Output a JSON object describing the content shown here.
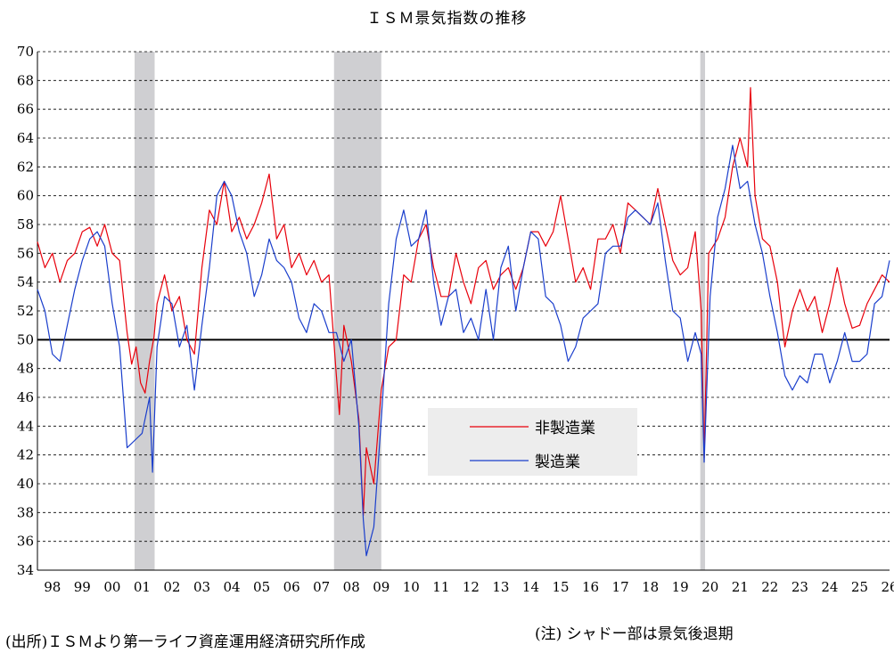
{
  "title": "ＩＳＭ景気指数の推移",
  "source_note": "(出所)ＩＳＭより第一ライフ資産運用経済研究所作成",
  "shadow_note": "(注) シャドー部は景気後退期",
  "chart_data": {
    "type": "line",
    "title": "ＩＳＭ景気指数の推移",
    "xlabel": "",
    "ylabel": "",
    "ylim": [
      34,
      70
    ],
    "yticks": [
      34,
      36,
      38,
      40,
      42,
      44,
      46,
      48,
      50,
      52,
      54,
      56,
      58,
      60,
      62,
      64,
      66,
      68,
      70
    ],
    "xlim": [
      1998.0,
      2026.5
    ],
    "xtick_labels": [
      "98",
      "99",
      "00",
      "01",
      "02",
      "03",
      "04",
      "05",
      "06",
      "07",
      "08",
      "09",
      "10",
      "11",
      "12",
      "13",
      "14",
      "15",
      "16",
      "17",
      "18",
      "19",
      "20",
      "21",
      "22",
      "23",
      "24",
      "25",
      "26"
    ],
    "reference_line": 50,
    "grid": "horizontal dashed",
    "legend_position": "center-right",
    "recessions": [
      [
        2001.25,
        2001.92
      ],
      [
        2007.92,
        2009.5
      ],
      [
        2020.17,
        2020.33
      ]
    ],
    "series": [
      {
        "name": "非製造業",
        "color": "#e8000b",
        "points": [
          [
            1998.0,
            56.8
          ],
          [
            1998.25,
            55.0
          ],
          [
            1998.5,
            56.0
          ],
          [
            1998.75,
            54.0
          ],
          [
            1999.0,
            55.5
          ],
          [
            1999.25,
            56.0
          ],
          [
            1999.5,
            57.5
          ],
          [
            1999.75,
            57.8
          ],
          [
            2000.0,
            56.5
          ],
          [
            2000.25,
            58.0
          ],
          [
            2000.5,
            56.0
          ],
          [
            2000.75,
            55.5
          ],
          [
            2001.0,
            50.5
          ],
          [
            2001.15,
            48.3
          ],
          [
            2001.3,
            49.5
          ],
          [
            2001.45,
            47.0
          ],
          [
            2001.6,
            46.3
          ],
          [
            2001.75,
            48.5
          ],
          [
            2001.9,
            50.2
          ],
          [
            2002.0,
            52.5
          ],
          [
            2002.25,
            54.5
          ],
          [
            2002.5,
            52.0
          ],
          [
            2002.75,
            53.0
          ],
          [
            2003.0,
            50.0
          ],
          [
            2003.25,
            49.0
          ],
          [
            2003.5,
            55.0
          ],
          [
            2003.75,
            59.0
          ],
          [
            2004.0,
            58.0
          ],
          [
            2004.25,
            61.0
          ],
          [
            2004.5,
            57.5
          ],
          [
            2004.75,
            58.5
          ],
          [
            2005.0,
            57.0
          ],
          [
            2005.25,
            58.0
          ],
          [
            2005.5,
            59.5
          ],
          [
            2005.75,
            61.5
          ],
          [
            2006.0,
            57.0
          ],
          [
            2006.25,
            58.0
          ],
          [
            2006.5,
            55.0
          ],
          [
            2006.75,
            56.0
          ],
          [
            2007.0,
            54.5
          ],
          [
            2007.25,
            55.5
          ],
          [
            2007.5,
            54.0
          ],
          [
            2007.75,
            54.5
          ],
          [
            2008.0,
            47.5
          ],
          [
            2008.1,
            44.8
          ],
          [
            2008.25,
            51.0
          ],
          [
            2008.5,
            48.5
          ],
          [
            2008.75,
            44.5
          ],
          [
            2008.9,
            37.8
          ],
          [
            2009.0,
            42.5
          ],
          [
            2009.25,
            40.0
          ],
          [
            2009.5,
            46.5
          ],
          [
            2009.75,
            49.5
          ],
          [
            2010.0,
            50.0
          ],
          [
            2010.25,
            54.5
          ],
          [
            2010.5,
            54.0
          ],
          [
            2010.75,
            57.0
          ],
          [
            2011.0,
            58.0
          ],
          [
            2011.25,
            55.0
          ],
          [
            2011.5,
            53.0
          ],
          [
            2011.75,
            53.0
          ],
          [
            2012.0,
            56.0
          ],
          [
            2012.25,
            54.0
          ],
          [
            2012.5,
            52.5
          ],
          [
            2012.75,
            55.0
          ],
          [
            2013.0,
            55.5
          ],
          [
            2013.25,
            53.5
          ],
          [
            2013.5,
            54.5
          ],
          [
            2013.75,
            55.0
          ],
          [
            2014.0,
            53.5
          ],
          [
            2014.25,
            55.0
          ],
          [
            2014.5,
            57.5
          ],
          [
            2014.75,
            57.5
          ],
          [
            2015.0,
            56.5
          ],
          [
            2015.25,
            57.5
          ],
          [
            2015.5,
            60.0
          ],
          [
            2015.75,
            57.0
          ],
          [
            2016.0,
            54.0
          ],
          [
            2016.25,
            55.0
          ],
          [
            2016.5,
            53.5
          ],
          [
            2016.75,
            57.0
          ],
          [
            2017.0,
            57.0
          ],
          [
            2017.25,
            58.0
          ],
          [
            2017.5,
            56.0
          ],
          [
            2017.75,
            59.5
          ],
          [
            2018.0,
            59.0
          ],
          [
            2018.25,
            58.5
          ],
          [
            2018.5,
            58.0
          ],
          [
            2018.75,
            60.5
          ],
          [
            2019.0,
            58.0
          ],
          [
            2019.25,
            55.5
          ],
          [
            2019.5,
            54.5
          ],
          [
            2019.75,
            55.0
          ],
          [
            2020.0,
            57.5
          ],
          [
            2020.2,
            52.0
          ],
          [
            2020.3,
            41.8
          ],
          [
            2020.45,
            56.0
          ],
          [
            2020.75,
            57.0
          ],
          [
            2021.0,
            58.5
          ],
          [
            2021.25,
            62.0
          ],
          [
            2021.5,
            64.0
          ],
          [
            2021.75,
            62.0
          ],
          [
            2021.85,
            67.5
          ],
          [
            2022.0,
            60.0
          ],
          [
            2022.25,
            57.0
          ],
          [
            2022.5,
            56.5
          ],
          [
            2022.75,
            54.0
          ],
          [
            2023.0,
            49.5
          ],
          [
            2023.25,
            52.0
          ],
          [
            2023.5,
            53.5
          ],
          [
            2023.75,
            52.0
          ],
          [
            2024.0,
            53.0
          ],
          [
            2024.25,
            50.5
          ],
          [
            2024.5,
            52.5
          ],
          [
            2024.75,
            55.0
          ],
          [
            2025.0,
            52.5
          ],
          [
            2025.25,
            50.8
          ],
          [
            2025.5,
            51.0
          ],
          [
            2025.75,
            52.5
          ],
          [
            2026.0,
            53.5
          ],
          [
            2026.25,
            54.5
          ],
          [
            2026.5,
            54.0
          ]
        ]
      },
      {
        "name": "製造業",
        "color": "#1a3ecc",
        "points": [
          [
            1998.0,
            53.5
          ],
          [
            1998.25,
            52.0
          ],
          [
            1998.5,
            49.0
          ],
          [
            1998.75,
            48.5
          ],
          [
            1999.0,
            51.0
          ],
          [
            1999.25,
            53.5
          ],
          [
            1999.5,
            55.5
          ],
          [
            1999.75,
            57.0
          ],
          [
            2000.0,
            57.5
          ],
          [
            2000.25,
            56.5
          ],
          [
            2000.5,
            52.5
          ],
          [
            2000.75,
            49.5
          ],
          [
            2001.0,
            42.5
          ],
          [
            2001.25,
            43.0
          ],
          [
            2001.5,
            43.5
          ],
          [
            2001.75,
            46.0
          ],
          [
            2001.85,
            40.8
          ],
          [
            2002.0,
            49.5
          ],
          [
            2002.25,
            53.0
          ],
          [
            2002.5,
            52.5
          ],
          [
            2002.75,
            49.5
          ],
          [
            2003.0,
            51.0
          ],
          [
            2003.25,
            46.5
          ],
          [
            2003.5,
            51.0
          ],
          [
            2003.75,
            55.0
          ],
          [
            2004.0,
            60.0
          ],
          [
            2004.25,
            61.0
          ],
          [
            2004.5,
            60.0
          ],
          [
            2004.75,
            57.5
          ],
          [
            2005.0,
            56.0
          ],
          [
            2005.25,
            53.0
          ],
          [
            2005.5,
            54.5
          ],
          [
            2005.75,
            57.0
          ],
          [
            2006.0,
            55.5
          ],
          [
            2006.25,
            55.0
          ],
          [
            2006.5,
            54.0
          ],
          [
            2006.75,
            51.5
          ],
          [
            2007.0,
            50.5
          ],
          [
            2007.25,
            52.5
          ],
          [
            2007.5,
            52.0
          ],
          [
            2007.75,
            50.5
          ],
          [
            2008.0,
            50.5
          ],
          [
            2008.25,
            48.5
          ],
          [
            2008.5,
            50.0
          ],
          [
            2008.75,
            44.0
          ],
          [
            2008.9,
            37.5
          ],
          [
            2009.0,
            35.0
          ],
          [
            2009.25,
            37.0
          ],
          [
            2009.5,
            44.5
          ],
          [
            2009.75,
            52.5
          ],
          [
            2010.0,
            57.0
          ],
          [
            2010.25,
            59.0
          ],
          [
            2010.5,
            56.5
          ],
          [
            2010.75,
            57.0
          ],
          [
            2011.0,
            59.0
          ],
          [
            2011.25,
            54.0
          ],
          [
            2011.5,
            51.0
          ],
          [
            2011.75,
            53.0
          ],
          [
            2012.0,
            53.5
          ],
          [
            2012.25,
            50.5
          ],
          [
            2012.5,
            51.5
          ],
          [
            2012.75,
            50.0
          ],
          [
            2013.0,
            53.5
          ],
          [
            2013.25,
            50.0
          ],
          [
            2013.5,
            55.0
          ],
          [
            2013.75,
            56.5
          ],
          [
            2014.0,
            52.0
          ],
          [
            2014.25,
            55.0
          ],
          [
            2014.5,
            57.5
          ],
          [
            2014.75,
            57.0
          ],
          [
            2015.0,
            53.0
          ],
          [
            2015.25,
            52.5
          ],
          [
            2015.5,
            51.0
          ],
          [
            2015.75,
            48.5
          ],
          [
            2016.0,
            49.5
          ],
          [
            2016.25,
            51.5
          ],
          [
            2016.5,
            52.0
          ],
          [
            2016.75,
            52.5
          ],
          [
            2017.0,
            56.0
          ],
          [
            2017.25,
            56.5
          ],
          [
            2017.5,
            56.5
          ],
          [
            2017.75,
            58.5
          ],
          [
            2018.0,
            59.0
          ],
          [
            2018.25,
            58.5
          ],
          [
            2018.5,
            58.0
          ],
          [
            2018.75,
            59.5
          ],
          [
            2019.0,
            55.5
          ],
          [
            2019.25,
            52.0
          ],
          [
            2019.5,
            51.5
          ],
          [
            2019.75,
            48.5
          ],
          [
            2020.0,
            50.5
          ],
          [
            2020.2,
            49.0
          ],
          [
            2020.3,
            41.5
          ],
          [
            2020.5,
            53.0
          ],
          [
            2020.75,
            58.5
          ],
          [
            2021.0,
            60.5
          ],
          [
            2021.25,
            63.5
          ],
          [
            2021.5,
            60.5
          ],
          [
            2021.75,
            61.0
          ],
          [
            2022.0,
            58.0
          ],
          [
            2022.25,
            56.0
          ],
          [
            2022.5,
            53.0
          ],
          [
            2022.75,
            50.5
          ],
          [
            2023.0,
            47.5
          ],
          [
            2023.25,
            46.5
          ],
          [
            2023.5,
            47.5
          ],
          [
            2023.75,
            47.0
          ],
          [
            2024.0,
            49.0
          ],
          [
            2024.25,
            49.0
          ],
          [
            2024.5,
            47.0
          ],
          [
            2024.75,
            48.5
          ],
          [
            2025.0,
            50.5
          ],
          [
            2025.25,
            48.5
          ],
          [
            2025.5,
            48.5
          ],
          [
            2025.75,
            49.0
          ],
          [
            2026.0,
            52.5
          ],
          [
            2026.25,
            53.0
          ],
          [
            2026.5,
            55.5
          ]
        ]
      }
    ]
  }
}
